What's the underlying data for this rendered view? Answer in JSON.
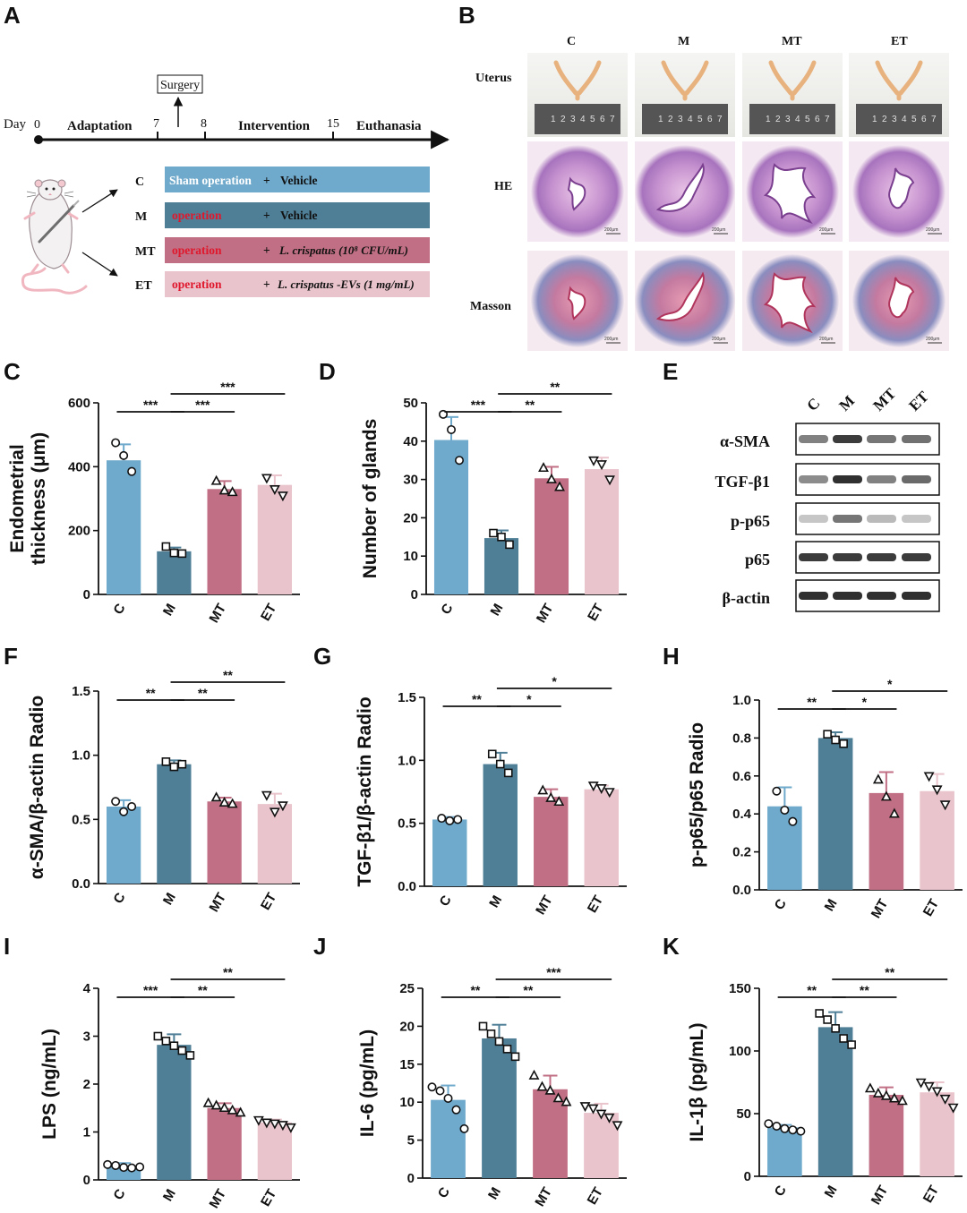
{
  "figure": {
    "panel_labels": [
      "A",
      "B",
      "C",
      "D",
      "E",
      "F",
      "G",
      "H",
      "I",
      "J",
      "K"
    ],
    "colors": {
      "C": "#6fa9cb",
      "M": "#4f7f97",
      "MT": "#c06f84",
      "ET": "#e9c4cc",
      "red": "#e0182d"
    }
  },
  "panelA": {
    "day_label": "Day",
    "timeline_ticks": [
      "0",
      "7",
      "8",
      "15"
    ],
    "surgery_label": "Surgery",
    "phases": [
      "Adaptation",
      "Intervention",
      "Euthanasia"
    ],
    "groups": [
      {
        "code": "C",
        "left": "Sham operation",
        "right": "Vehicle",
        "color": "#6fa9cb"
      },
      {
        "code": "M",
        "left": "operation",
        "right": "Vehicle",
        "color": "#4f7f97"
      },
      {
        "code": "MT",
        "left": "operation",
        "right": "L. crispatus (10⁸ CFU/mL)",
        "color": "#c06f84"
      },
      {
        "code": "ET",
        "left": "operation",
        "right": "L. crispatus -EVs (1 mg/mL)",
        "color": "#e9c4cc"
      }
    ],
    "plus": "+"
  },
  "panelB": {
    "columns": [
      "C",
      "M",
      "MT",
      "ET"
    ],
    "rows": [
      "Uterus",
      "HE",
      "Masson"
    ],
    "ruler_digits": [
      "1",
      "2",
      "3",
      "4",
      "5",
      "6",
      "7"
    ],
    "scale_bar": "200μm"
  },
  "panelE": {
    "columns": [
      "C",
      "M",
      "MT",
      "ET"
    ],
    "rows": [
      "α-SMA",
      "TGF-β1",
      "p-p65",
      "p65",
      "β-actin"
    ]
  },
  "chart_data": [
    {
      "id": "C",
      "type": "bar",
      "categories": [
        "C",
        "M",
        "MT",
        "ET"
      ],
      "values": [
        420,
        135,
        330,
        343
      ],
      "errors": [
        50,
        12,
        25,
        30
      ],
      "ylabel": "Endometrial thickness (μm)",
      "ylim": [
        0,
        600
      ],
      "yticks": [
        "0",
        "200",
        "400",
        "600"
      ],
      "points": [
        [
          475,
          435,
          385
        ],
        [
          150,
          130,
          128
        ],
        [
          355,
          325,
          320
        ],
        [
          365,
          330,
          310
        ]
      ],
      "sig": [
        {
          "a": 0,
          "b": 1,
          "level": 0,
          "text": "***"
        },
        {
          "a": 1,
          "b": 2,
          "level": 0,
          "text": "***"
        },
        {
          "a": 1,
          "b": 3,
          "level": 1,
          "text": "***"
        }
      ]
    },
    {
      "id": "D",
      "type": "bar",
      "categories": [
        "C",
        "M",
        "MT",
        "ET"
      ],
      "values": [
        40.3,
        14.7,
        30.3,
        32.7
      ],
      "errors": [
        6,
        2,
        3,
        3
      ],
      "ylabel": "Number of glands",
      "ylim": [
        0,
        50
      ],
      "yticks": [
        "0",
        "10",
        "20",
        "30",
        "40",
        "50"
      ],
      "points": [
        [
          47,
          43,
          35
        ],
        [
          16,
          15,
          13
        ],
        [
          33,
          30,
          28
        ],
        [
          35,
          34,
          30
        ]
      ],
      "sig": [
        {
          "a": 0,
          "b": 1,
          "level": 0,
          "text": "***"
        },
        {
          "a": 1,
          "b": 2,
          "level": 0,
          "text": "**"
        },
        {
          "a": 1,
          "b": 3,
          "level": 1,
          "text": "**"
        }
      ]
    },
    {
      "id": "F",
      "type": "bar",
      "categories": [
        "C",
        "M",
        "MT",
        "ET"
      ],
      "values": [
        0.6,
        0.93,
        0.64,
        0.62
      ],
      "errors": [
        0.05,
        0.03,
        0.03,
        0.08
      ],
      "ylabel": "α-SMA/β-actin Radio",
      "ylim": [
        0,
        1.5
      ],
      "yticks": [
        "0.0",
        "0.5",
        "1.0",
        "1.5"
      ],
      "points": [
        [
          0.64,
          0.56,
          0.6
        ],
        [
          0.95,
          0.91,
          0.93
        ],
        [
          0.67,
          0.63,
          0.62
        ],
        [
          0.69,
          0.56,
          0.61
        ]
      ],
      "sig": [
        {
          "a": 0,
          "b": 1,
          "level": 0,
          "text": "**"
        },
        {
          "a": 1,
          "b": 2,
          "level": 0,
          "text": "**"
        },
        {
          "a": 1,
          "b": 3,
          "level": 1,
          "text": "**"
        }
      ]
    },
    {
      "id": "G",
      "type": "bar",
      "categories": [
        "C",
        "M",
        "MT",
        "ET"
      ],
      "values": [
        0.53,
        0.97,
        0.71,
        0.77
      ],
      "errors": [
        0.02,
        0.09,
        0.06,
        0.03
      ],
      "ylabel": "TGF-β1/β-actin Radio",
      "ylim": [
        0,
        1.5
      ],
      "yticks": [
        "0.0",
        "0.5",
        "1.0",
        "1.5"
      ],
      "points": [
        [
          0.54,
          0.52,
          0.53
        ],
        [
          1.05,
          0.97,
          0.9
        ],
        [
          0.76,
          0.7,
          0.67
        ],
        [
          0.8,
          0.78,
          0.75
        ]
      ],
      "sig": [
        {
          "a": 0,
          "b": 1,
          "level": 0,
          "text": "**"
        },
        {
          "a": 1,
          "b": 2,
          "level": 0,
          "text": "*"
        },
        {
          "a": 1,
          "b": 3,
          "level": 1,
          "text": "*"
        }
      ]
    },
    {
      "id": "H",
      "type": "bar",
      "categories": [
        "C",
        "M",
        "MT",
        "ET"
      ],
      "values": [
        0.44,
        0.8,
        0.51,
        0.52
      ],
      "errors": [
        0.1,
        0.03,
        0.11,
        0.09
      ],
      "ylabel": "p-p65/p65 Radio",
      "ylim": [
        0,
        1.0
      ],
      "yticks": [
        "0.0",
        "0.2",
        "0.4",
        "0.6",
        "0.8",
        "1.0"
      ],
      "points": [
        [
          0.52,
          0.42,
          0.36
        ],
        [
          0.82,
          0.79,
          0.77
        ],
        [
          0.58,
          0.49,
          0.4
        ],
        [
          0.6,
          0.53,
          0.45
        ]
      ],
      "sig": [
        {
          "a": 0,
          "b": 1,
          "level": 0,
          "text": "**"
        },
        {
          "a": 1,
          "b": 2,
          "level": 0,
          "text": "*"
        },
        {
          "a": 1,
          "b": 3,
          "level": 1,
          "text": "*"
        }
      ]
    },
    {
      "id": "I",
      "type": "bar",
      "categories": [
        "C",
        "M",
        "MT",
        "ET"
      ],
      "values": [
        0.28,
        2.82,
        1.5,
        1.2
      ],
      "errors": [
        0.07,
        0.22,
        0.1,
        0.06
      ],
      "ylabel": "LPS (ng/mL)",
      "ylim": [
        0,
        4
      ],
      "yticks": [
        "0",
        "1",
        "2",
        "3",
        "4"
      ],
      "points": [
        [
          0.32,
          0.3,
          0.26,
          0.25,
          0.27
        ],
        [
          3.0,
          2.9,
          2.8,
          2.7,
          2.6
        ],
        [
          1.6,
          1.55,
          1.5,
          1.45,
          1.4
        ],
        [
          1.25,
          1.2,
          1.18,
          1.15,
          1.1
        ]
      ],
      "sig": [
        {
          "a": 0,
          "b": 1,
          "level": 0,
          "text": "***"
        },
        {
          "a": 1,
          "b": 2,
          "level": 0,
          "text": "**"
        },
        {
          "a": 1,
          "b": 3,
          "level": 1,
          "text": "**"
        }
      ]
    },
    {
      "id": "J",
      "type": "bar",
      "categories": [
        "C",
        "M",
        "MT",
        "ET"
      ],
      "values": [
        10.3,
        18.4,
        11.7,
        8.6
      ],
      "errors": [
        1.9,
        1.8,
        1.8,
        1.2
      ],
      "ylabel": "IL-6 (pg/mL)",
      "ylim": [
        0,
        25
      ],
      "yticks": [
        "0",
        "5",
        "10",
        "15",
        "20",
        "25"
      ],
      "points": [
        [
          12,
          11.5,
          10.5,
          9,
          6.5
        ],
        [
          20,
          19,
          18,
          17,
          16
        ],
        [
          13.5,
          12,
          11.5,
          10.5,
          10
        ],
        [
          9.5,
          9.2,
          8.5,
          8,
          7
        ]
      ],
      "sig": [
        {
          "a": 0,
          "b": 1,
          "level": 0,
          "text": "**"
        },
        {
          "a": 1,
          "b": 2,
          "level": 0,
          "text": "**"
        },
        {
          "a": 1,
          "b": 3,
          "level": 1,
          "text": "***"
        }
      ]
    },
    {
      "id": "K",
      "type": "bar",
      "categories": [
        "C",
        "M",
        "MT",
        "ET"
      ],
      "values": [
        39,
        119,
        65,
        67
      ],
      "errors": [
        2,
        12,
        6,
        8
      ],
      "ylabel": "IL-1β (pg/mL)",
      "ylim": [
        0,
        150
      ],
      "yticks": [
        "0",
        "50",
        "100",
        "150"
      ],
      "points": [
        [
          42,
          40,
          38,
          37,
          36
        ],
        [
          130,
          125,
          118,
          110,
          105
        ],
        [
          70,
          66,
          64,
          62,
          60
        ],
        [
          75,
          72,
          68,
          62,
          55
        ]
      ],
      "sig": [
        {
          "a": 0,
          "b": 1,
          "level": 0,
          "text": "**"
        },
        {
          "a": 1,
          "b": 2,
          "level": 0,
          "text": "**"
        },
        {
          "a": 1,
          "b": 3,
          "level": 1,
          "text": "**"
        }
      ]
    }
  ]
}
